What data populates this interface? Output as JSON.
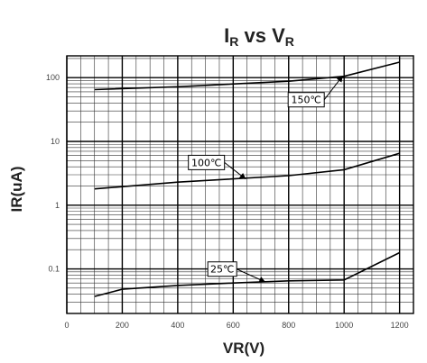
{
  "chart_data": {
    "type": "line",
    "title": {
      "main": "I",
      "main_sub": "R",
      "middle": " vs ",
      "end": "V",
      "end_sub": "R"
    },
    "xlabel": "VR(V)",
    "ylabel": "IR(uA)",
    "x_scale": "linear",
    "y_scale": "log",
    "xlim": [
      0,
      1250
    ],
    "ylim": [
      0.02,
      220
    ],
    "grid": true,
    "x_ticks": [
      {
        "value": 0,
        "label": "0"
      },
      {
        "value": 200,
        "label": "200"
      },
      {
        "value": 400,
        "label": "400"
      },
      {
        "value": 600,
        "label": "600"
      },
      {
        "value": 800,
        "label": "800"
      },
      {
        "value": 1000,
        "label": "1000"
      },
      {
        "value": 1200,
        "label": "1200"
      }
    ],
    "y_ticks": [
      {
        "value": 100,
        "label": "100"
      },
      {
        "value": 10,
        "label": "10"
      },
      {
        "value": 1,
        "label": "1"
      },
      {
        "value": 0.1,
        "label": "0.1"
      }
    ],
    "series": [
      {
        "name": "150℃",
        "x": [
          100,
          400,
          800,
          1000,
          1200
        ],
        "y": [
          65,
          72,
          88,
          105,
          175
        ]
      },
      {
        "name": "100℃",
        "x": [
          100,
          400,
          800,
          1000,
          1200
        ],
        "y": [
          1.8,
          2.3,
          2.9,
          3.6,
          6.5
        ]
      },
      {
        "name": "25℃",
        "x": [
          100,
          200,
          400,
          600,
          800,
          1000,
          1200
        ],
        "y": [
          0.037,
          0.048,
          0.055,
          0.06,
          0.065,
          0.067,
          0.18
        ]
      }
    ],
    "annotations": [
      {
        "text": "150℃",
        "series": "150℃",
        "point_x": 1000,
        "point_y": 105
      },
      {
        "text": "100℃",
        "series": "100℃",
        "point_x": 650,
        "point_y": 2.6
      },
      {
        "text": "25℃",
        "series": "25℃",
        "point_x": 720,
        "point_y": 0.063
      }
    ]
  }
}
